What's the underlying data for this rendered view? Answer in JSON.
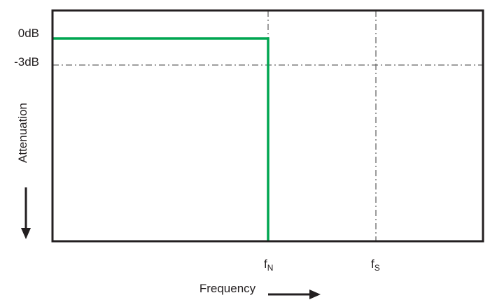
{
  "y_labels": [
    "0dB",
    "-3dB"
  ],
  "y_axis_label": "Attenuation",
  "x_labels": [
    {
      "base": "f",
      "subscript": "N"
    },
    {
      "base": "f",
      "subscript": "S"
    }
  ],
  "x_axis_label": "Frequency"
}
